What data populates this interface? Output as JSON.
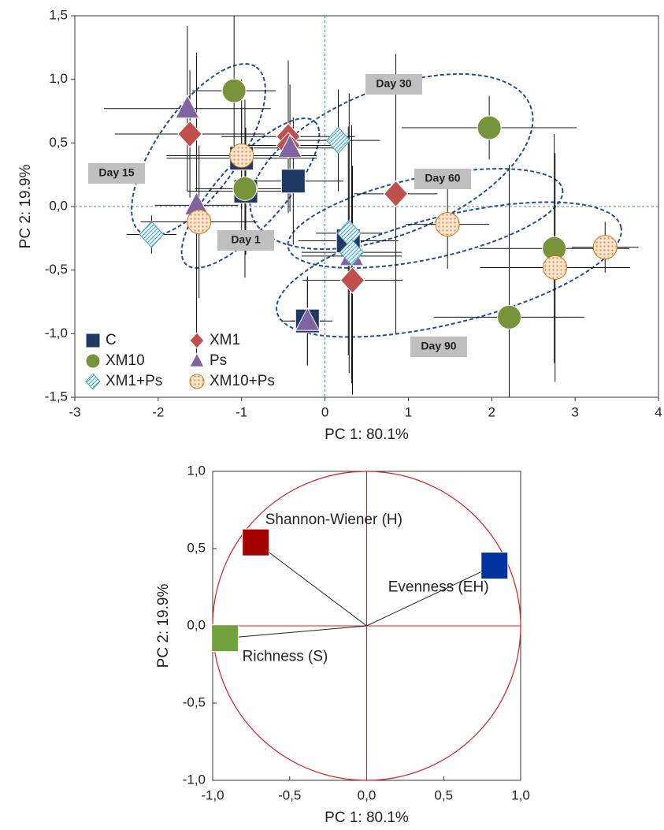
{
  "chart_data": [
    {
      "type": "scatter",
      "xlabel": "PC 1: 80.1%",
      "ylabel": "PC 2: 19.9%",
      "xlim": [
        -3,
        4
      ],
      "xticks": [
        -3,
        -2,
        -1,
        0,
        1,
        2,
        3,
        4
      ],
      "ylim": [
        -1.5,
        1.5
      ],
      "yticks": [
        {
          "value": -1.5,
          "label": "-1,5"
        },
        {
          "value": -1,
          "label": "-1,0"
        },
        {
          "value": -0.5,
          "label": "-0,5"
        },
        {
          "value": 0,
          "label": "0,0"
        },
        {
          "value": 0.5,
          "label": "0,5"
        },
        {
          "value": 1,
          "label": "1,0"
        },
        {
          "value": 1.5,
          "label": "1,5"
        }
      ],
      "zero_lines": true,
      "legend": "lower left",
      "annotations": [
        "Day 15",
        "Day 1",
        "Day 30",
        "Day 60",
        "Day 90"
      ],
      "series": [
        {
          "name": "C",
          "color": "#1f3864",
          "marker": "square",
          "x": [
            -1.0,
            -0.95,
            -0.38,
            0.28,
            -0.21
          ],
          "values": [
            0.38,
            0.12,
            0.2,
            -0.27,
            -0.9
          ],
          "x_err": [
            0.9,
            0.7,
            0.6,
            0.6,
            0.3
          ],
          "y_err": [
            0.4,
            0.5,
            0.5,
            0.9,
            0.35
          ]
        },
        {
          "name": "XM1",
          "color": "#c0504d",
          "marker": "diamond",
          "x": [
            -1.62,
            -0.44,
            -0.44,
            0.85,
            0.33
          ],
          "values": [
            0.57,
            0.55,
            0.48,
            0.1,
            -0.58
          ],
          "x_err": [
            0.9,
            0.8,
            0.6,
            0.5,
            0.6
          ],
          "y_err": [
            0.5,
            0.6,
            0.5,
            1.1,
            0.9
          ]
        },
        {
          "name": "XM10",
          "color": "#77933c",
          "marker": "circle",
          "x": [
            -1.09,
            -0.96,
            1.97,
            2.75,
            2.21
          ],
          "values": [
            0.91,
            0.14,
            0.62,
            -0.33,
            -0.87
          ],
          "x_err": [
            0.5,
            0.6,
            1.05,
            0.9,
            0.9
          ],
          "y_err": [
            0.6,
            0.7,
            0.25,
            0.9,
            1.2
          ]
        },
        {
          "name": "Ps",
          "color": "#8064a2",
          "marker": "triangle",
          "x": [
            -1.65,
            -0.42,
            -1.54,
            0.32,
            -0.21
          ],
          "values": [
            0.77,
            0.46,
            0.01,
            -0.39,
            -0.9
          ],
          "x_err": [
            1.0,
            0.6,
            0.5,
            0.6,
            0.2
          ],
          "y_err": [
            0.65,
            0.5,
            1.2,
            1.0,
            0.35
          ]
        },
        {
          "name": "XM1+Ps",
          "color": "#b7dde8",
          "marker": "diamond-hatch",
          "x": [
            -2.08,
            0.16,
            0.29,
            0.32
          ],
          "values": [
            -0.22,
            0.52,
            -0.21,
            -0.36
          ],
          "x_err": [
            0.3,
            0.5,
            0.4,
            0.6
          ],
          "y_err": [
            0.15,
            0.4,
            1.1,
            1.0
          ]
        },
        {
          "name": "XM10+Ps",
          "color": "#e46c0a",
          "marker": "circle-hatch",
          "x": [
            -1.0,
            -1.51,
            1.47,
            2.76,
            3.36
          ],
          "values": [
            0.4,
            -0.12,
            -0.14,
            -0.48,
            -0.32
          ],
          "x_err": [
            0.9,
            0.7,
            0.5,
            0.9,
            0.4
          ],
          "y_err": [
            0.6,
            0.6,
            0.35,
            0.9,
            0.2
          ]
        }
      ]
    },
    {
      "type": "scatter",
      "xlabel": "PC 1: 80.1%",
      "ylabel": "PC 2: 19.9%",
      "xlim": [
        -1,
        1
      ],
      "xticks": [
        {
          "value": -1,
          "label": "-1,0"
        },
        {
          "value": -0.5,
          "label": "-0,5"
        },
        {
          "value": 0,
          "label": "0,0"
        },
        {
          "value": 0.5,
          "label": "0,5"
        },
        {
          "value": 1,
          "label": "1,0"
        }
      ],
      "ylim": [
        -1,
        1
      ],
      "yticks": [
        {
          "value": -1,
          "label": "-1,0"
        },
        {
          "value": -0.5,
          "label": "-0,5"
        },
        {
          "value": 0,
          "label": "0,0"
        },
        {
          "value": 0.5,
          "label": "0,5"
        },
        {
          "value": 1,
          "label": "1,0"
        }
      ],
      "zero_lines": true,
      "unit_circle": true,
      "series": [
        {
          "name": "Shannon-Wiener (H)",
          "color": "#a50000",
          "marker": "square",
          "x": [
            -0.72
          ],
          "values": [
            0.54
          ]
        },
        {
          "name": "Evenness (EH)",
          "color": "#0033a0",
          "marker": "square",
          "x": [
            0.83
          ],
          "values": [
            0.39
          ]
        },
        {
          "name": "Richness (S)",
          "color": "#70a33c",
          "marker": "square",
          "x": [
            -0.92
          ],
          "values": [
            -0.08
          ]
        }
      ]
    }
  ]
}
